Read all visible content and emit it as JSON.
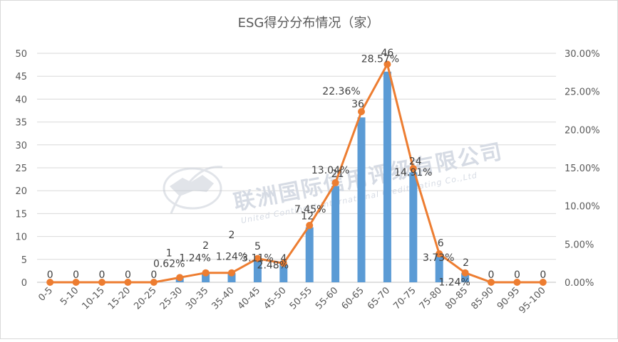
{
  "chart_data": {
    "type": "bar+line",
    "title": "ESG得分分布情况（家）",
    "categories": [
      "0-5",
      "5-10",
      "10-15",
      "15-20",
      "20-25",
      "25-30",
      "30-35",
      "35-40",
      "40-45",
      "45-50",
      "50-55",
      "55-60",
      "60-65",
      "65-70",
      "70-75",
      "75-80",
      "80-85",
      "85-90",
      "90-95",
      "95-100"
    ],
    "bar_series": {
      "values": [
        0,
        0,
        0,
        0,
        0,
        1,
        2,
        2,
        5,
        4,
        12,
        21,
        36,
        46,
        24,
        6,
        2,
        0,
        0,
        0
      ],
      "color": "#5B9BD5",
      "axis": "left"
    },
    "line_series": {
      "values": [
        0,
        0,
        0,
        0,
        0,
        0.62,
        1.24,
        1.24,
        3.11,
        2.48,
        7.45,
        13.04,
        22.36,
        28.57,
        14.91,
        3.73,
        1.24,
        0,
        0,
        0
      ],
      "labels": [
        "",
        "",
        "",
        "",
        "",
        "0.62%",
        "1.24%",
        "1.24%",
        "3.11%",
        "2.48%",
        "7.45%",
        "13.04%",
        "22.36%",
        "28.57%",
        "14.91%",
        "3.73%",
        "1.24%",
        "",
        "",
        ""
      ],
      "color": "#ED7D31",
      "axis": "right"
    },
    "count_labels": [
      "0",
      "0",
      "0",
      "0",
      "0",
      "1",
      "2",
      "2",
      "5",
      "4",
      "12",
      "21",
      "36",
      "46",
      "24",
      "6",
      "2",
      "0",
      "0",
      "0"
    ],
    "y_left": {
      "ylim": [
        0,
        50
      ],
      "ticks": [
        "0",
        "5",
        "10",
        "15",
        "20",
        "25",
        "30",
        "35",
        "40",
        "45",
        "50"
      ]
    },
    "y_right": {
      "ylim": [
        0,
        30
      ],
      "ticks": [
        "0.00%",
        "5.00%",
        "10.00%",
        "15.00%",
        "20.00%",
        "25.00%",
        "30.00%"
      ]
    },
    "grid": true,
    "legend": "none"
  },
  "watermark": {
    "cn": "联洲国际信用评级有限公司",
    "en": "United Continent International Credit Rating Co.,Ltd"
  }
}
